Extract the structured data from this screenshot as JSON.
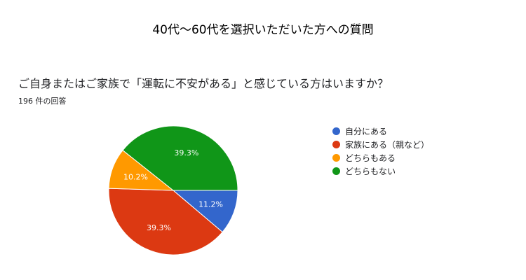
{
  "page_title": "40代〜60代を選択いただいた方への質問",
  "question": "ご自身またはご家族で「運転に不安がある」と感じている方はいますか？",
  "response_count": "196 件の回答",
  "chart_data": {
    "type": "pie",
    "title": "ご自身またはご家族で「運転に不安がある」と感じている方はいますか？",
    "legend_position": "right",
    "slices": [
      {
        "label": "自分にある",
        "value": 11.2,
        "display": "11.2%",
        "color": "#3366cc"
      },
      {
        "label": "家族にある（親など）",
        "value": 39.3,
        "display": "39.3%",
        "color": "#dc3912"
      },
      {
        "label": "どちらもある",
        "value": 10.2,
        "display": "10.2%",
        "color": "#ff9900"
      },
      {
        "label": "どちらもない",
        "value": 39.3,
        "display": "39.3%",
        "color": "#109618"
      }
    ]
  }
}
